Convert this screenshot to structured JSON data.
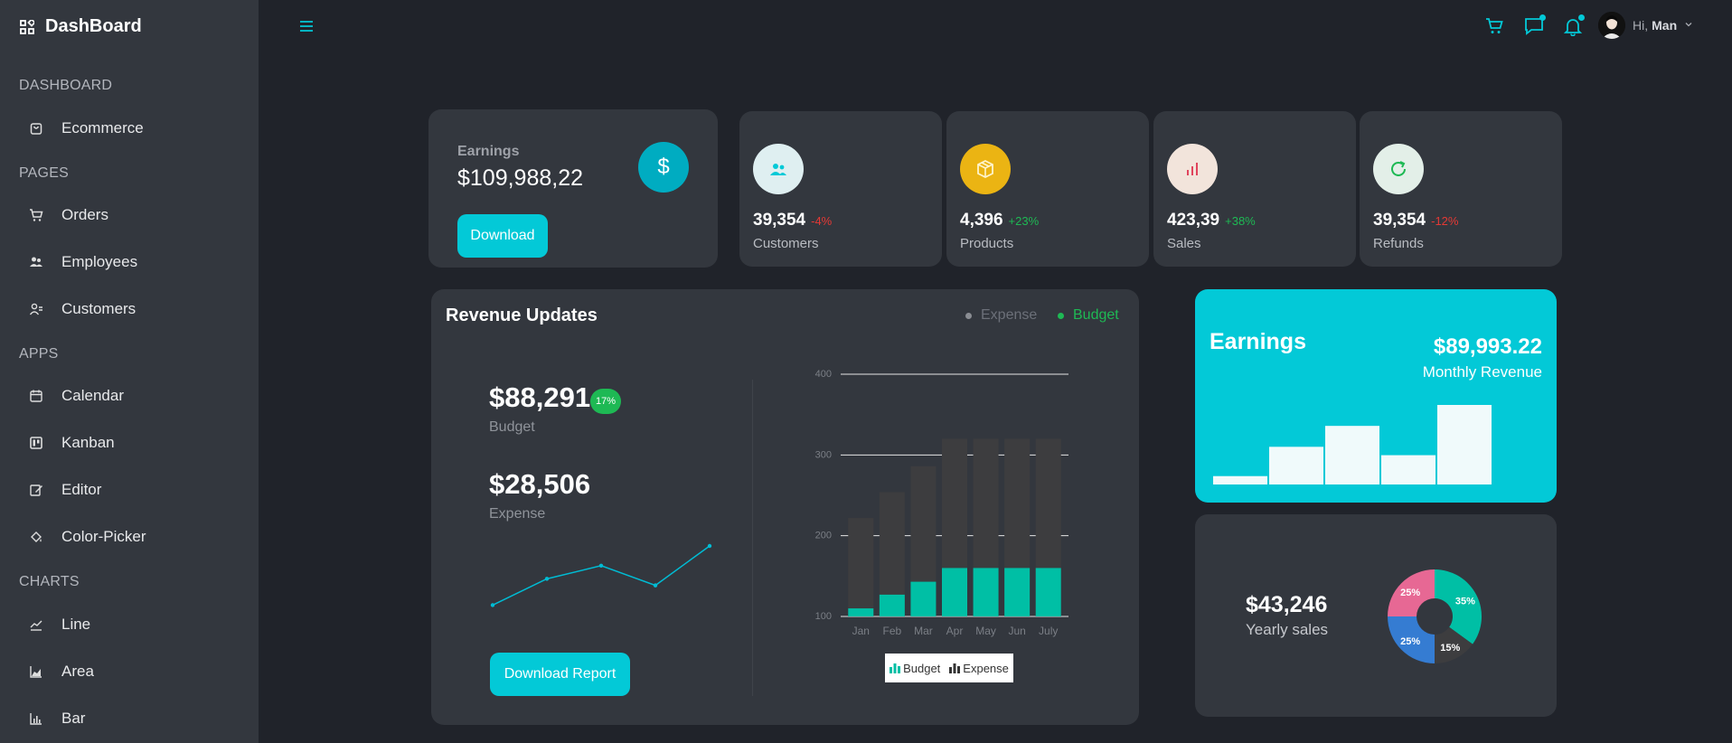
{
  "sidebar": {
    "brand": "DashBoard",
    "sections": {
      "dashboard": "DASHBOARD",
      "pages": "PAGES",
      "apps": "APPS",
      "charts": "CHARTS"
    },
    "items": {
      "ecommerce": "Ecommerce",
      "orders": "Orders",
      "employees": "Employees",
      "customers": "Customers",
      "calendar": "Calendar",
      "kanban": "Kanban",
      "editor": "Editor",
      "color_picker": "Color-Picker",
      "line": "Line",
      "area": "Area",
      "bar": "Bar"
    }
  },
  "header": {
    "greeting": "Hi,",
    "user_name": "Man",
    "icons": [
      "hamburger-icon",
      "cart-icon",
      "chat-icon",
      "bell-icon",
      "chevron-down-icon"
    ]
  },
  "earnings_card": {
    "label": "Earnings",
    "value": "$109,988,22",
    "button": "Download",
    "icon": "dollar-icon"
  },
  "stats": [
    {
      "value": "39,354",
      "pct": "-4%",
      "label": "Customers",
      "pct_color": "#e53935",
      "icon_bg": "#dfeff1",
      "icon_color": "#03c9d7",
      "icon": "users-icon"
    },
    {
      "value": "4,396",
      "pct": "+23%",
      "label": "Products",
      "pct_color": "#1eb954",
      "icon_bg": "#ebb413",
      "icon_color": "#fff4cc",
      "icon": "box-icon"
    },
    {
      "value": "423,39",
      "pct": "+38%",
      "label": "Sales",
      "pct_color": "#1eb954",
      "icon_bg": "#f2e4db",
      "icon_color": "#e0445c",
      "icon": "bar-chart-icon"
    },
    {
      "value": "39,354",
      "pct": "-12%",
      "label": "Refunds",
      "pct_color": "#e53935",
      "icon_bg": "#e3efe8",
      "icon_color": "#1eb954",
      "icon": "refresh-icon"
    }
  ],
  "revenue": {
    "title": "Revenue Updates",
    "legend_expense": "Expense",
    "legend_budget": "Budget",
    "budget_value": "$88,291",
    "budget_badge": "17%",
    "budget_label": "Budget",
    "expense_value": "$28,506",
    "expense_label": "Expense",
    "button": "Download Report",
    "sparkline": [
      1,
      3,
      4,
      2.5,
      5.5
    ]
  },
  "chart_data": [
    {
      "type": "bar",
      "stacked": false,
      "categories": [
        "Jan",
        "Feb",
        "Mar",
        "Apr",
        "May",
        "Jun",
        "July"
      ],
      "series": [
        {
          "name": "Budget",
          "values": [
            110,
            127,
            143,
            160,
            160,
            160,
            160
          ],
          "color": "#00bfa5"
        },
        {
          "name": "Expense",
          "values": [
            222,
            254,
            286,
            320,
            320,
            320,
            320
          ],
          "color": "#3d3d3f"
        }
      ],
      "ylim": [
        100,
        400
      ],
      "yticks": [
        100,
        200,
        300,
        400
      ],
      "grid": true,
      "legend": "bottom"
    },
    {
      "type": "bar",
      "values": [
        2,
        9,
        14,
        7,
        19
      ],
      "color": "#f0fafb"
    },
    {
      "type": "pie",
      "donut": true,
      "labels": [
        "35%",
        "15%",
        "25%",
        "25%"
      ],
      "values": [
        35,
        15,
        25,
        25
      ],
      "colors": [
        "#00bfa5",
        "#3d3d3f",
        "#357cd2",
        "#e76894"
      ]
    }
  ],
  "teal_earnings": {
    "title": "Earnings",
    "value": "$89,993.22",
    "subtitle": "Monthly Revenue"
  },
  "yearly_sales": {
    "value": "$43,246",
    "label": "Yearly sales"
  }
}
